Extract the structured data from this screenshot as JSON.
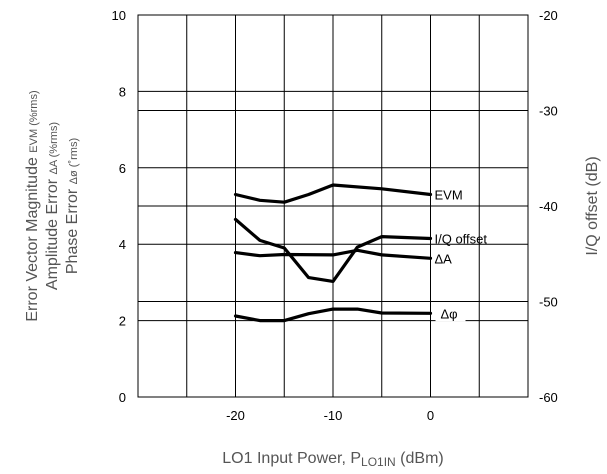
{
  "chart_data": {
    "type": "line",
    "xlabel": "LO1 Input Power, P",
    "xlabel_sub": "LO1IN",
    "xlabel_unit": " (dBm)",
    "ylabel_lines": [
      {
        "main": "Error Vector Magnitude ",
        "sub": "EVM (%rms)"
      },
      {
        "main": "Amplitude Error ",
        "sub": "ΔA (%rms)"
      },
      {
        "main": "Phase Error ",
        "sub": "Δø (˚rms)"
      }
    ],
    "y2label": "I/Q offset (dB)",
    "xlim": [
      -30,
      10
    ],
    "ylim": [
      0,
      10
    ],
    "y2lim": [
      -60,
      -20
    ],
    "x_ticks": [
      "-20",
      "-10",
      "0"
    ],
    "x_tick_values": [
      -20,
      -10,
      0
    ],
    "y_ticks": [
      "0",
      "2",
      "4",
      "6",
      "8",
      "10"
    ],
    "y_tick_values": [
      0,
      2,
      4,
      6,
      8,
      10
    ],
    "y2_ticks": [
      "-60",
      "-50",
      "-40",
      "-30",
      "-20"
    ],
    "y2_tick_values": [
      -60,
      -50,
      -40,
      -30,
      -20
    ],
    "series": [
      {
        "name": "EVM",
        "axis": "left",
        "x": [
          -20,
          -17.5,
          -15,
          -12.5,
          -10,
          -5,
          0
        ],
        "y": [
          5.3,
          5.15,
          5.1,
          5.3,
          5.55,
          5.45,
          5.3
        ]
      },
      {
        "name": "I/Q offset",
        "axis": "right",
        "x": [
          -20,
          -17.5,
          -15,
          -12.5,
          -10,
          -7.5,
          -5,
          0
        ],
        "y": [
          -41.4,
          -43.6,
          -44.4,
          -47.5,
          -47.9,
          -44.3,
          -43.2,
          -43.4
        ]
      },
      {
        "name": "ΔA",
        "axis": "left",
        "x": [
          -20,
          -17.5,
          -15,
          -10,
          -7.5,
          -5,
          0
        ],
        "y": [
          3.78,
          3.7,
          3.73,
          3.72,
          3.84,
          3.72,
          3.63
        ]
      },
      {
        "name": "Δφ",
        "axis": "left",
        "x": [
          -20,
          -17.5,
          -15,
          -12.5,
          -10,
          -7.5,
          -5,
          0
        ],
        "y": [
          2.12,
          2.0,
          2.0,
          2.18,
          2.3,
          2.3,
          2.2,
          2.19
        ]
      }
    ],
    "grid": true
  }
}
